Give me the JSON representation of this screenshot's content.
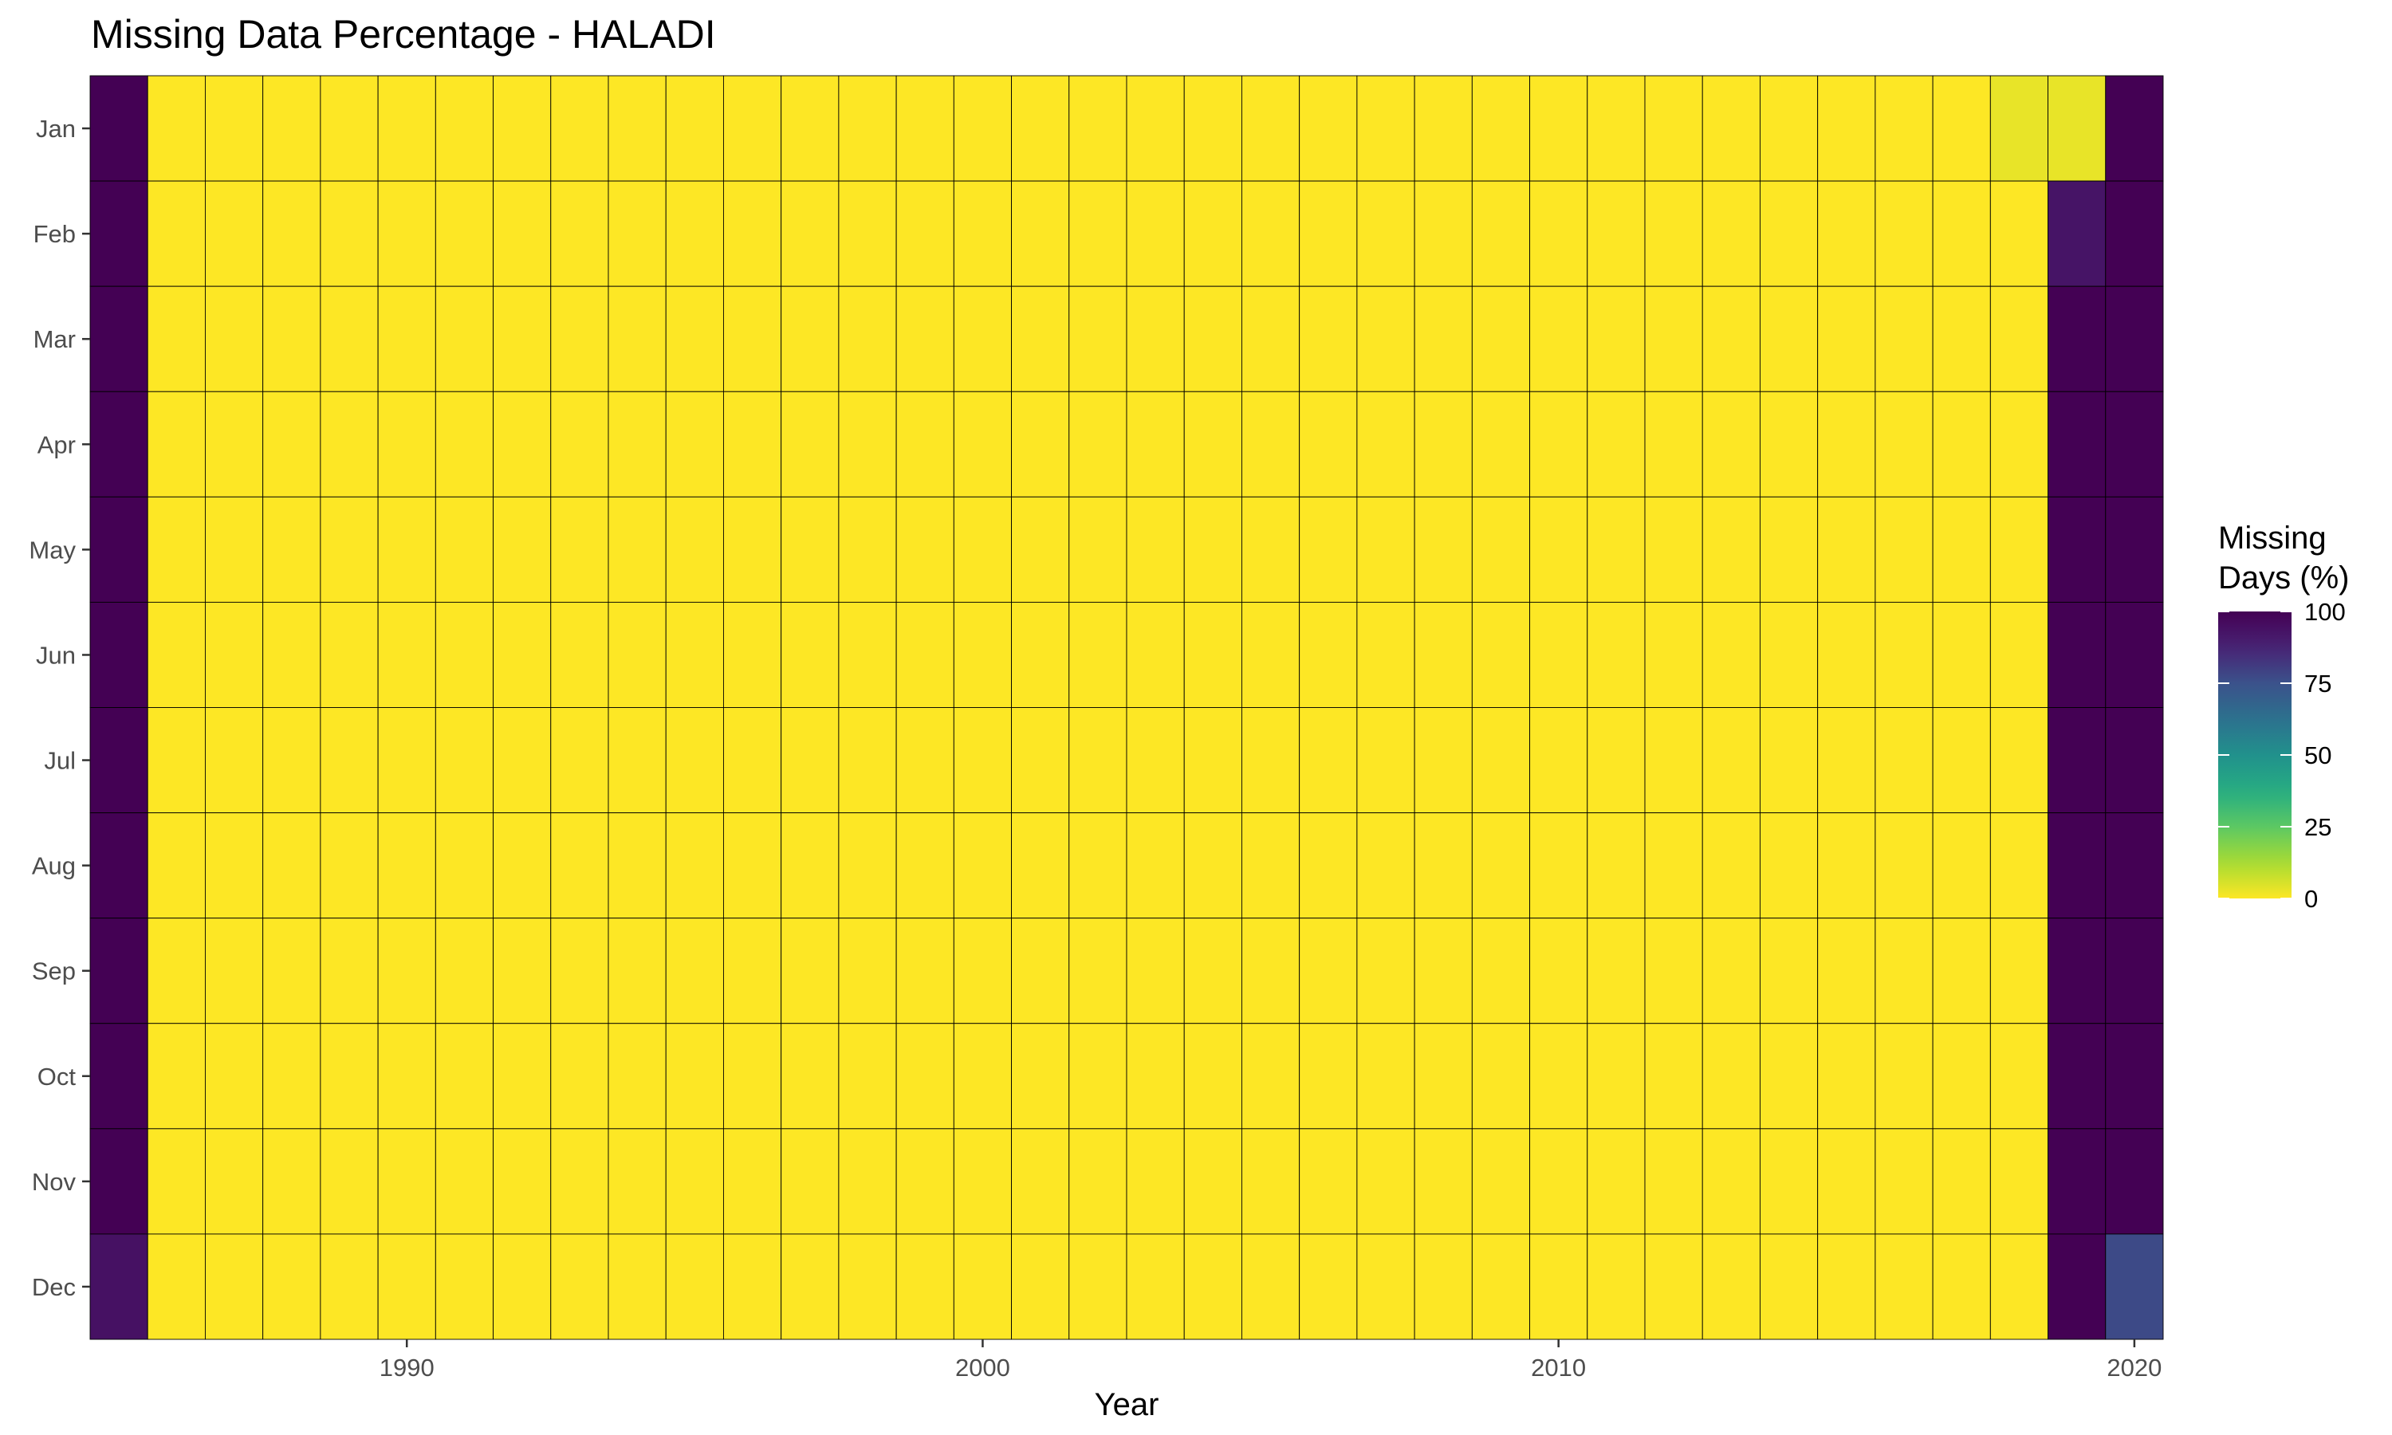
{
  "chart_data": {
    "type": "heatmap",
    "title": "Missing Data Percentage - HALADI",
    "xlabel": "Year",
    "ylabel": "",
    "x": [
      1985,
      1986,
      1987,
      1988,
      1989,
      1990,
      1991,
      1992,
      1993,
      1994,
      1995,
      1996,
      1997,
      1998,
      1999,
      2000,
      2001,
      2002,
      2003,
      2004,
      2005,
      2006,
      2007,
      2008,
      2009,
      2010,
      2011,
      2012,
      2013,
      2014,
      2015,
      2016,
      2017,
      2018,
      2019,
      2020
    ],
    "x_ticks": [
      1990,
      2000,
      2010,
      2020
    ],
    "months": [
      "Jan",
      "Feb",
      "Mar",
      "Apr",
      "May",
      "Jun",
      "Jul",
      "Aug",
      "Sep",
      "Oct",
      "Nov",
      "Dec"
    ],
    "default_value": 0,
    "cells": [
      {
        "year": 1985,
        "month": "Jan",
        "value": 100
      },
      {
        "year": 1985,
        "month": "Feb",
        "value": 100
      },
      {
        "year": 1985,
        "month": "Mar",
        "value": 100
      },
      {
        "year": 1985,
        "month": "Apr",
        "value": 100
      },
      {
        "year": 1985,
        "month": "May",
        "value": 100
      },
      {
        "year": 1985,
        "month": "Jun",
        "value": 100
      },
      {
        "year": 1985,
        "month": "Jul",
        "value": 100
      },
      {
        "year": 1985,
        "month": "Aug",
        "value": 100
      },
      {
        "year": 1985,
        "month": "Sep",
        "value": 100
      },
      {
        "year": 1985,
        "month": "Oct",
        "value": 100
      },
      {
        "year": 1985,
        "month": "Nov",
        "value": 100
      },
      {
        "year": 1985,
        "month": "Dec",
        "value": 94
      },
      {
        "year": 2018,
        "month": "Jan",
        "value": 3
      },
      {
        "year": 2019,
        "month": "Jan",
        "value": 3
      },
      {
        "year": 2019,
        "month": "Feb",
        "value": 93
      },
      {
        "year": 2019,
        "month": "Mar",
        "value": 100
      },
      {
        "year": 2019,
        "month": "Apr",
        "value": 100
      },
      {
        "year": 2019,
        "month": "May",
        "value": 100
      },
      {
        "year": 2019,
        "month": "Jun",
        "value": 100
      },
      {
        "year": 2019,
        "month": "Jul",
        "value": 100
      },
      {
        "year": 2019,
        "month": "Aug",
        "value": 100
      },
      {
        "year": 2019,
        "month": "Sep",
        "value": 100
      },
      {
        "year": 2019,
        "month": "Oct",
        "value": 100
      },
      {
        "year": 2019,
        "month": "Nov",
        "value": 100
      },
      {
        "year": 2019,
        "month": "Dec",
        "value": 100
      },
      {
        "year": 2020,
        "month": "Jan",
        "value": 100
      },
      {
        "year": 2020,
        "month": "Feb",
        "value": 100
      },
      {
        "year": 2020,
        "month": "Mar",
        "value": 100
      },
      {
        "year": 2020,
        "month": "Apr",
        "value": 100
      },
      {
        "year": 2020,
        "month": "May",
        "value": 100
      },
      {
        "year": 2020,
        "month": "Jun",
        "value": 100
      },
      {
        "year": 2020,
        "month": "Jul",
        "value": 100
      },
      {
        "year": 2020,
        "month": "Aug",
        "value": 100
      },
      {
        "year": 2020,
        "month": "Sep",
        "value": 100
      },
      {
        "year": 2020,
        "month": "Oct",
        "value": 100
      },
      {
        "year": 2020,
        "month": "Nov",
        "value": 100
      },
      {
        "year": 2020,
        "month": "Dec",
        "value": 77
      }
    ],
    "colorbar": {
      "title_lines": [
        "Missing",
        "Days (%)"
      ],
      "ticks": [
        0,
        25,
        50,
        75,
        100
      ],
      "range": [
        0,
        100
      ],
      "palette": "viridis-reversed"
    },
    "legend_position": "right",
    "grid": false
  }
}
